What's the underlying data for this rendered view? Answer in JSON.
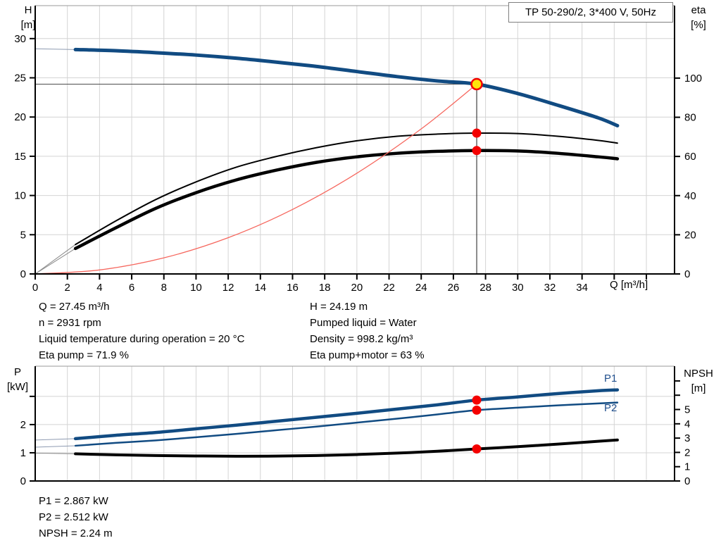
{
  "title_box": "TP 50-290/2, 3*400 V, 50Hz",
  "axis_titles": {
    "h": [
      "H",
      "[m]"
    ],
    "eta": [
      "eta",
      "[%]"
    ],
    "q": "Q [m³/h]",
    "p": [
      "P",
      "[kW]"
    ],
    "npsh": [
      "NPSH",
      "[m]"
    ]
  },
  "curve_labels": {
    "p1": "P1",
    "p2": "P2"
  },
  "colors": {
    "curve_blue": "#114b82",
    "curve_black": "#000000",
    "system_curve_red": "#f6675e",
    "marker_red": "#f40000",
    "marker_yellow": "#ffe60a",
    "grid": "#d4d4d4",
    "axis": "#000000",
    "top_border": "#9a9a9a",
    "label_blue": "#1f4e8c"
  },
  "text_blocks": {
    "top_left": [
      "Q = 27.45 m³/h",
      "n = 2931 rpm",
      "Liquid temperature during operation = 20 °C",
      "Eta pump = 71.9 %"
    ],
    "top_right": [
      "H = 24.19 m",
      "Pumped liquid = Water",
      "Density = 998.2 kg/m³",
      "Eta pump+motor = 63 %"
    ],
    "bottom": [
      "P1 = 2.867 kW",
      "P2 = 2.512 kW",
      "NPSH = 2.24 m"
    ]
  },
  "chart_data": [
    {
      "type": "line",
      "name": "qh-eta-chart",
      "title": "TP 50-290/2, 3*400 V, 50Hz",
      "x_axis": {
        "label": "Q [m³/h]",
        "min": 0,
        "max": 39.75,
        "grid_step": 2,
        "tick_step": 2,
        "label_limit": 34
      },
      "left_axis": {
        "label": "H [m]",
        "min": 0,
        "max": 34.2,
        "ticks": [
          0,
          5,
          10,
          15,
          20,
          25,
          30
        ],
        "labeled": [
          0,
          5,
          10,
          15,
          20,
          25,
          30
        ]
      },
      "right_axis": {
        "label": "eta [%]",
        "min": 0,
        "max": 137,
        "ticks": [
          0,
          20,
          40,
          60,
          80,
          100
        ],
        "labeled": [
          0,
          20,
          40,
          60,
          80,
          100
        ]
      },
      "series": [
        {
          "name": "head-curve",
          "axis": "left",
          "color": "#114b82",
          "width": 5,
          "thin_until": 2.5,
          "thin_color": "#8d9ab1",
          "points": [
            [
              0,
              28.7
            ],
            [
              2.5,
              28.6
            ],
            [
              5,
              28.45
            ],
            [
              7.5,
              28.2
            ],
            [
              10,
              27.9
            ],
            [
              12.5,
              27.5
            ],
            [
              15,
              27.0
            ],
            [
              17.5,
              26.45
            ],
            [
              20,
              25.8
            ],
            [
              22.5,
              25.15
            ],
            [
              25,
              24.6
            ],
            [
              27.45,
              24.19
            ],
            [
              30,
              23.0
            ],
            [
              32.5,
              21.5
            ],
            [
              35,
              19.9
            ],
            [
              36.2,
              18.9
            ]
          ]
        },
        {
          "name": "eta-pump-curve",
          "axis": "right",
          "color": "#000000",
          "width": 2,
          "thin_until": 2.5,
          "thin_color": "#8a8a8a",
          "points": [
            [
              0,
              0
            ],
            [
              2.5,
              15
            ],
            [
              5,
              27
            ],
            [
              7.5,
              38
            ],
            [
              10,
              47
            ],
            [
              12.5,
              54.5
            ],
            [
              15,
              60
            ],
            [
              17.5,
              64.5
            ],
            [
              20,
              68
            ],
            [
              22.5,
              70.3
            ],
            [
              25,
              71.4
            ],
            [
              27.45,
              71.9
            ],
            [
              30,
              71.7
            ],
            [
              32.5,
              70.3
            ],
            [
              35,
              68.2
            ],
            [
              36.2,
              66.8
            ]
          ]
        },
        {
          "name": "eta-pump-motor-curve",
          "axis": "right",
          "color": "#000000",
          "width": 4.5,
          "thin_until": 2.5,
          "thin_color": "#8a8a8a",
          "points": [
            [
              0,
              0
            ],
            [
              2.5,
              13
            ],
            [
              5,
              23.5
            ],
            [
              7.5,
              33.5
            ],
            [
              10,
              41.5
            ],
            [
              12.5,
              48
            ],
            [
              15,
              53
            ],
            [
              17.5,
              57
            ],
            [
              20,
              59.8
            ],
            [
              22.5,
              61.6
            ],
            [
              25,
              62.6
            ],
            [
              27.45,
              63
            ],
            [
              30,
              62.8
            ],
            [
              32.5,
              61.6
            ],
            [
              35,
              59.8
            ],
            [
              36.2,
              58.8
            ]
          ]
        },
        {
          "name": "system-curve",
          "axis": "left",
          "color": "#f6675e",
          "width": 1.3,
          "points": [
            [
              0,
              0
            ],
            [
              4,
              0.51
            ],
            [
              8,
              2.05
            ],
            [
              12,
              4.62
            ],
            [
              16,
              8.22
            ],
            [
              20,
              12.84
            ],
            [
              24,
              18.49
            ],
            [
              27.45,
              24.19
            ]
          ]
        }
      ],
      "ref_lines": [
        {
          "name": "duty-vertical-line",
          "orient": "v",
          "axis": "left",
          "x": 27.45,
          "from": 0,
          "to": 24.19,
          "color": "#1a1a1a",
          "width": 1
        },
        {
          "name": "duty-horizontal-line",
          "orient": "h",
          "axis": "left",
          "y": 24.19,
          "from": 0,
          "to": 27.45,
          "color": "#4d4d4d",
          "width": 1
        }
      ],
      "markers": [
        {
          "name": "duty-point-marker",
          "x": 27.45,
          "value": 24.19,
          "axis": "left",
          "r": 7.5,
          "fill": "#ffe60a",
          "stroke": "#f40000",
          "stroke_width": 2.5,
          "interactable": true
        },
        {
          "name": "eta-pump-point",
          "x": 27.45,
          "value": 71.9,
          "axis": "right",
          "r": 6.5,
          "fill": "#f40000"
        },
        {
          "name": "eta-pump-motor-point",
          "x": 27.45,
          "value": 63,
          "axis": "right",
          "r": 6.5,
          "fill": "#f40000"
        }
      ]
    },
    {
      "type": "line",
      "name": "power-npsh-chart",
      "x_axis": {
        "label": "",
        "min": 0,
        "max": 39.75,
        "grid_step": 2,
        "tick_step": 0,
        "label_limit": -1
      },
      "left_axis": {
        "label": "P [kW]",
        "min": 0,
        "max": 4.07,
        "ticks": [
          0,
          1,
          2,
          3
        ],
        "labeled": [
          0,
          1,
          2
        ]
      },
      "right_axis": {
        "label": "NPSH [m]",
        "min": 0,
        "max": 8.03,
        "ticks": [
          0,
          1,
          2,
          3,
          4,
          5,
          6,
          7
        ],
        "labeled": [
          0,
          1,
          2,
          3,
          4,
          5
        ]
      },
      "series": [
        {
          "name": "p1-curve",
          "axis": "left",
          "color": "#114b82",
          "width": 4.5,
          "thin_until": 2.5,
          "thin_color": "#8d9ab1",
          "points": [
            [
              0,
              1.45
            ],
            [
              2.5,
              1.5
            ],
            [
              5,
              1.62
            ],
            [
              7.5,
              1.72
            ],
            [
              10,
              1.85
            ],
            [
              12.5,
              1.98
            ],
            [
              15,
              2.12
            ],
            [
              17.5,
              2.26
            ],
            [
              20,
              2.4
            ],
            [
              22.5,
              2.55
            ],
            [
              25,
              2.7
            ],
            [
              27.45,
              2.867
            ],
            [
              30,
              2.98
            ],
            [
              32.5,
              3.1
            ],
            [
              35,
              3.2
            ],
            [
              36.2,
              3.23
            ]
          ]
        },
        {
          "name": "p2-curve",
          "axis": "left",
          "color": "#114b82",
          "width": 2.5,
          "thin_until": 2.5,
          "thin_color": "#8d9ab1",
          "points": [
            [
              0,
              1.2
            ],
            [
              2.5,
              1.25
            ],
            [
              5,
              1.35
            ],
            [
              7.5,
              1.44
            ],
            [
              10,
              1.55
            ],
            [
              12.5,
              1.67
            ],
            [
              15,
              1.8
            ],
            [
              17.5,
              1.93
            ],
            [
              20,
              2.07
            ],
            [
              22.5,
              2.21
            ],
            [
              25,
              2.36
            ],
            [
              27.45,
              2.512
            ],
            [
              30,
              2.6
            ],
            [
              32.5,
              2.68
            ],
            [
              35,
              2.75
            ],
            [
              36.2,
              2.78
            ]
          ]
        },
        {
          "name": "npsh-curve",
          "axis": "right",
          "color": "#000000",
          "width": 4,
          "thin_until": 2.5,
          "thin_color": "#8a8a8a",
          "points": [
            [
              0,
              1.95
            ],
            [
              2.5,
              1.9
            ],
            [
              5,
              1.83
            ],
            [
              7.5,
              1.78
            ],
            [
              10,
              1.75
            ],
            [
              12.5,
              1.73
            ],
            [
              15,
              1.74
            ],
            [
              17.5,
              1.78
            ],
            [
              20,
              1.85
            ],
            [
              22.5,
              1.95
            ],
            [
              25,
              2.08
            ],
            [
              27.45,
              2.24
            ],
            [
              30,
              2.4
            ],
            [
              32.5,
              2.58
            ],
            [
              35,
              2.78
            ],
            [
              36.2,
              2.87
            ]
          ]
        }
      ],
      "ref_lines": [],
      "markers": [
        {
          "name": "p1-point",
          "x": 27.45,
          "value": 2.867,
          "axis": "left",
          "r": 6.5,
          "fill": "#f40000"
        },
        {
          "name": "p2-point",
          "x": 27.45,
          "value": 2.512,
          "axis": "left",
          "r": 6.5,
          "fill": "#f40000"
        },
        {
          "name": "npsh-point",
          "x": 27.45,
          "value": 2.24,
          "axis": "right",
          "r": 6.5,
          "fill": "#f40000"
        }
      ]
    }
  ]
}
